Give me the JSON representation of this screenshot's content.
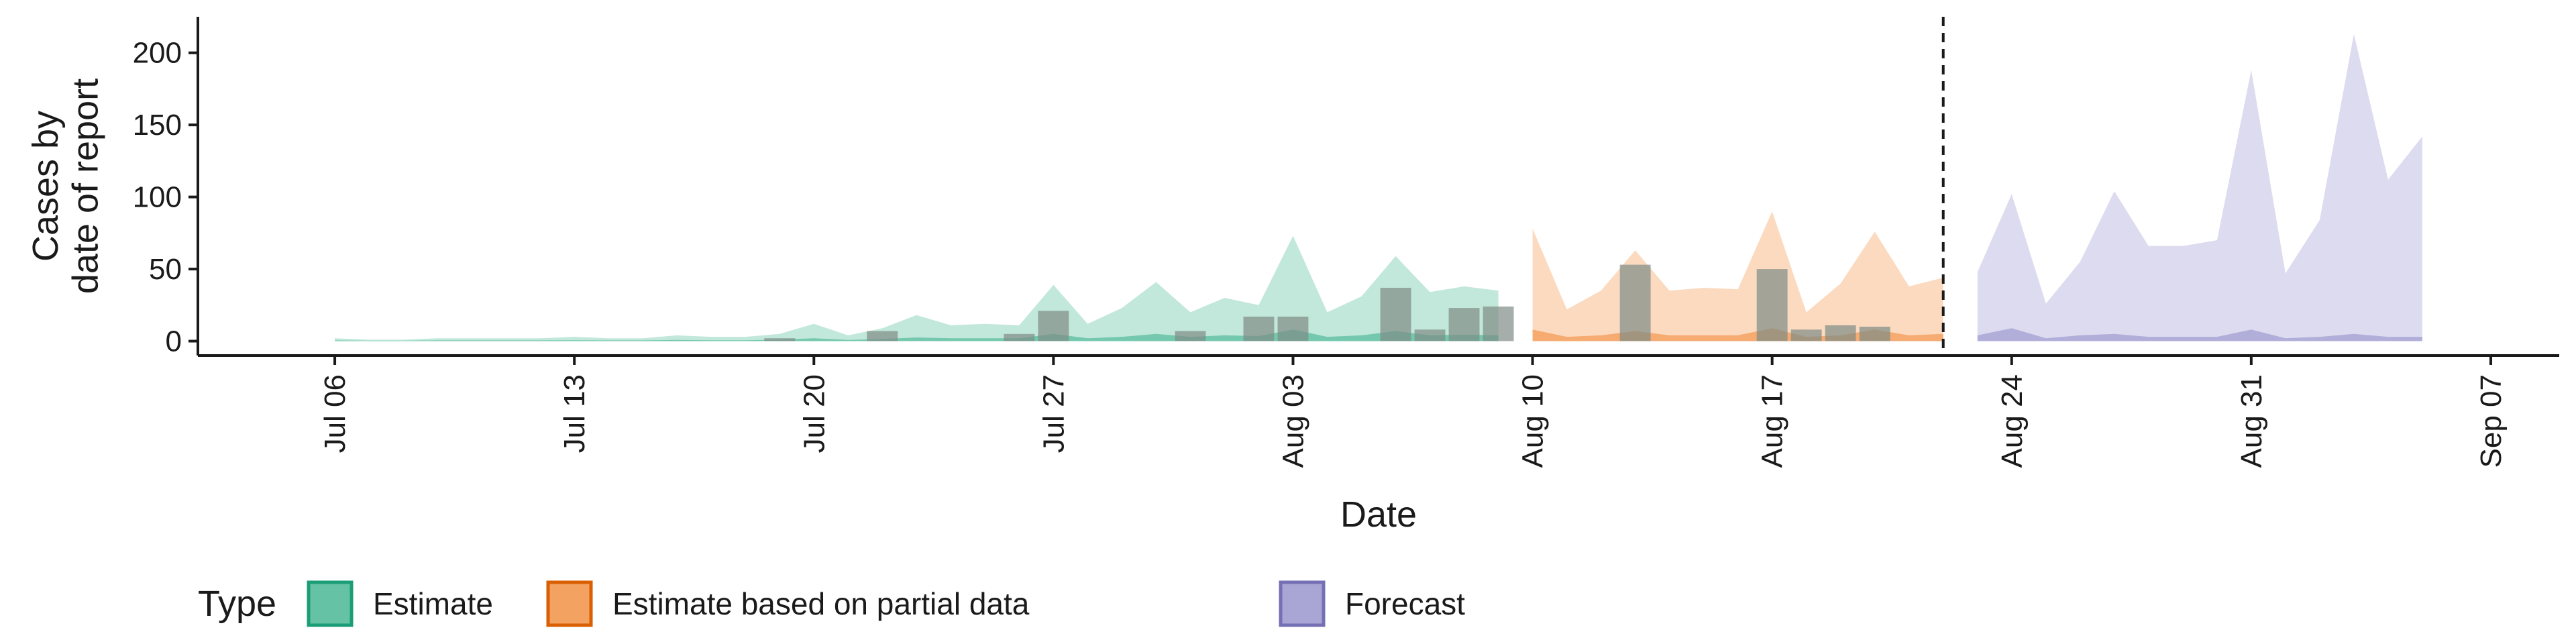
{
  "chart_data": {
    "type": "area",
    "xlabel": "Date",
    "ylabel": [
      "Cases by",
      "date of report"
    ],
    "ylim": [
      -10,
      225
    ],
    "y_ticks": [
      0,
      50,
      100,
      150,
      200
    ],
    "x_start": "2020-07-02",
    "x_end": "2020-09-09",
    "x_ticks": [
      {
        "date": "2020-07-06",
        "label": "Jul 06"
      },
      {
        "date": "2020-07-13",
        "label": "Jul 13"
      },
      {
        "date": "2020-07-20",
        "label": "Jul 20"
      },
      {
        "date": "2020-07-27",
        "label": "Jul 27"
      },
      {
        "date": "2020-08-03",
        "label": "Aug 03"
      },
      {
        "date": "2020-08-10",
        "label": "Aug 10"
      },
      {
        "date": "2020-08-17",
        "label": "Aug 17"
      },
      {
        "date": "2020-08-24",
        "label": "Aug 24"
      },
      {
        "date": "2020-08-31",
        "label": "Aug 31"
      },
      {
        "date": "2020-09-07",
        "label": "Sep 07"
      }
    ],
    "forecast_date": "2020-08-22",
    "legend": {
      "title": "Type",
      "position": "bottom",
      "items": [
        {
          "label": "Estimate",
          "fill": "#66c2a5",
          "stroke": "#1b9e77"
        },
        {
          "label": "Estimate based on partial data",
          "fill": "#f4a261",
          "stroke": "#d95f02"
        },
        {
          "label": "Forecast",
          "fill": "#a9a6d6",
          "stroke": "#7570b3"
        }
      ]
    },
    "series": [
      {
        "name": "Estimate",
        "color": "#66c2a5",
        "dates": [
          "2020-07-06",
          "2020-07-07",
          "2020-07-08",
          "2020-07-09",
          "2020-07-10",
          "2020-07-11",
          "2020-07-12",
          "2020-07-13",
          "2020-07-14",
          "2020-07-15",
          "2020-07-16",
          "2020-07-17",
          "2020-07-18",
          "2020-07-19",
          "2020-07-20",
          "2020-07-21",
          "2020-07-22",
          "2020-07-23",
          "2020-07-24",
          "2020-07-25",
          "2020-07-26",
          "2020-07-27",
          "2020-07-28",
          "2020-07-29",
          "2020-07-30",
          "2020-07-31",
          "2020-08-01",
          "2020-08-02",
          "2020-08-03",
          "2020-08-04",
          "2020-08-05",
          "2020-08-06",
          "2020-08-07",
          "2020-08-08",
          "2020-08-09"
        ],
        "lower": [
          0,
          0,
          0,
          0,
          0,
          0,
          0,
          0,
          0,
          0,
          0,
          0,
          0,
          0,
          0,
          0,
          0,
          0,
          0,
          0,
          0,
          0,
          0,
          0,
          0,
          0,
          0,
          0,
          0,
          0,
          0,
          0,
          0,
          0,
          0
        ],
        "upper": [
          2,
          1,
          1,
          2,
          2,
          2,
          2,
          3,
          2,
          2,
          4,
          3,
          3,
          5,
          12,
          4,
          9,
          18,
          11,
          12,
          11,
          39,
          12,
          23,
          41,
          20,
          30,
          25,
          73,
          20,
          31,
          59,
          34,
          38,
          35
        ],
        "inner_upper": [
          0.5,
          0.3,
          0.3,
          0.5,
          0.5,
          0.5,
          0.5,
          0.6,
          0.5,
          0.5,
          0.8,
          0.6,
          0.6,
          1,
          2,
          0.8,
          1.5,
          2.5,
          2,
          2,
          2,
          5,
          2,
          3,
          5,
          3,
          4,
          3.5,
          8,
          3,
          4,
          7,
          4,
          4.5,
          4
        ]
      },
      {
        "name": "Estimate based on partial data",
        "color": "#f4a261",
        "dates": [
          "2020-08-10",
          "2020-08-11",
          "2020-08-12",
          "2020-08-13",
          "2020-08-14",
          "2020-08-15",
          "2020-08-16",
          "2020-08-17",
          "2020-08-18",
          "2020-08-19",
          "2020-08-20",
          "2020-08-21",
          "2020-08-22"
        ],
        "lower": [
          0,
          0,
          0,
          0,
          0,
          0,
          0,
          0,
          0,
          0,
          0,
          0,
          0
        ],
        "upper": [
          78,
          22,
          35,
          63,
          35,
          37,
          36,
          90,
          20,
          40,
          76,
          38,
          44
        ],
        "inner_upper": [
          8,
          3,
          4,
          7,
          4,
          4,
          4,
          9,
          3,
          4,
          8,
          4,
          5
        ]
      },
      {
        "name": "Forecast",
        "color": "#a9a6d6",
        "dates": [
          "2020-08-23",
          "2020-08-24",
          "2020-08-25",
          "2020-08-26",
          "2020-08-27",
          "2020-08-28",
          "2020-08-29",
          "2020-08-30",
          "2020-08-31",
          "2020-09-01",
          "2020-09-02",
          "2020-09-03",
          "2020-09-04",
          "2020-09-05"
        ],
        "lower": [
          0,
          0,
          0,
          0,
          0,
          0,
          0,
          0,
          0,
          0,
          0,
          0,
          0,
          0
        ],
        "upper": [
          48,
          102,
          26,
          55,
          104,
          66,
          66,
          70,
          188,
          47,
          84,
          213,
          112,
          142
        ],
        "inner_upper": [
          4,
          9,
          2,
          4,
          5,
          3,
          3,
          3,
          8,
          2,
          3,
          5,
          3,
          3
        ]
      }
    ],
    "bars": [
      {
        "date": "2020-07-19",
        "value": 2
      },
      {
        "date": "2020-07-22",
        "value": 7
      },
      {
        "date": "2020-07-26",
        "value": 5
      },
      {
        "date": "2020-07-27",
        "value": 21
      },
      {
        "date": "2020-07-31",
        "value": 7
      },
      {
        "date": "2020-08-02",
        "value": 17
      },
      {
        "date": "2020-08-03",
        "value": 17
      },
      {
        "date": "2020-08-06",
        "value": 37
      },
      {
        "date": "2020-08-07",
        "value": 8
      },
      {
        "date": "2020-08-08",
        "value": 23
      },
      {
        "date": "2020-08-09",
        "value": 24
      },
      {
        "date": "2020-08-13",
        "value": 53
      },
      {
        "date": "2020-08-17",
        "value": 50
      },
      {
        "date": "2020-08-18",
        "value": 8
      },
      {
        "date": "2020-08-19",
        "value": 11
      },
      {
        "date": "2020-08-20",
        "value": 10
      }
    ],
    "bar_color": "#7f8c86"
  }
}
